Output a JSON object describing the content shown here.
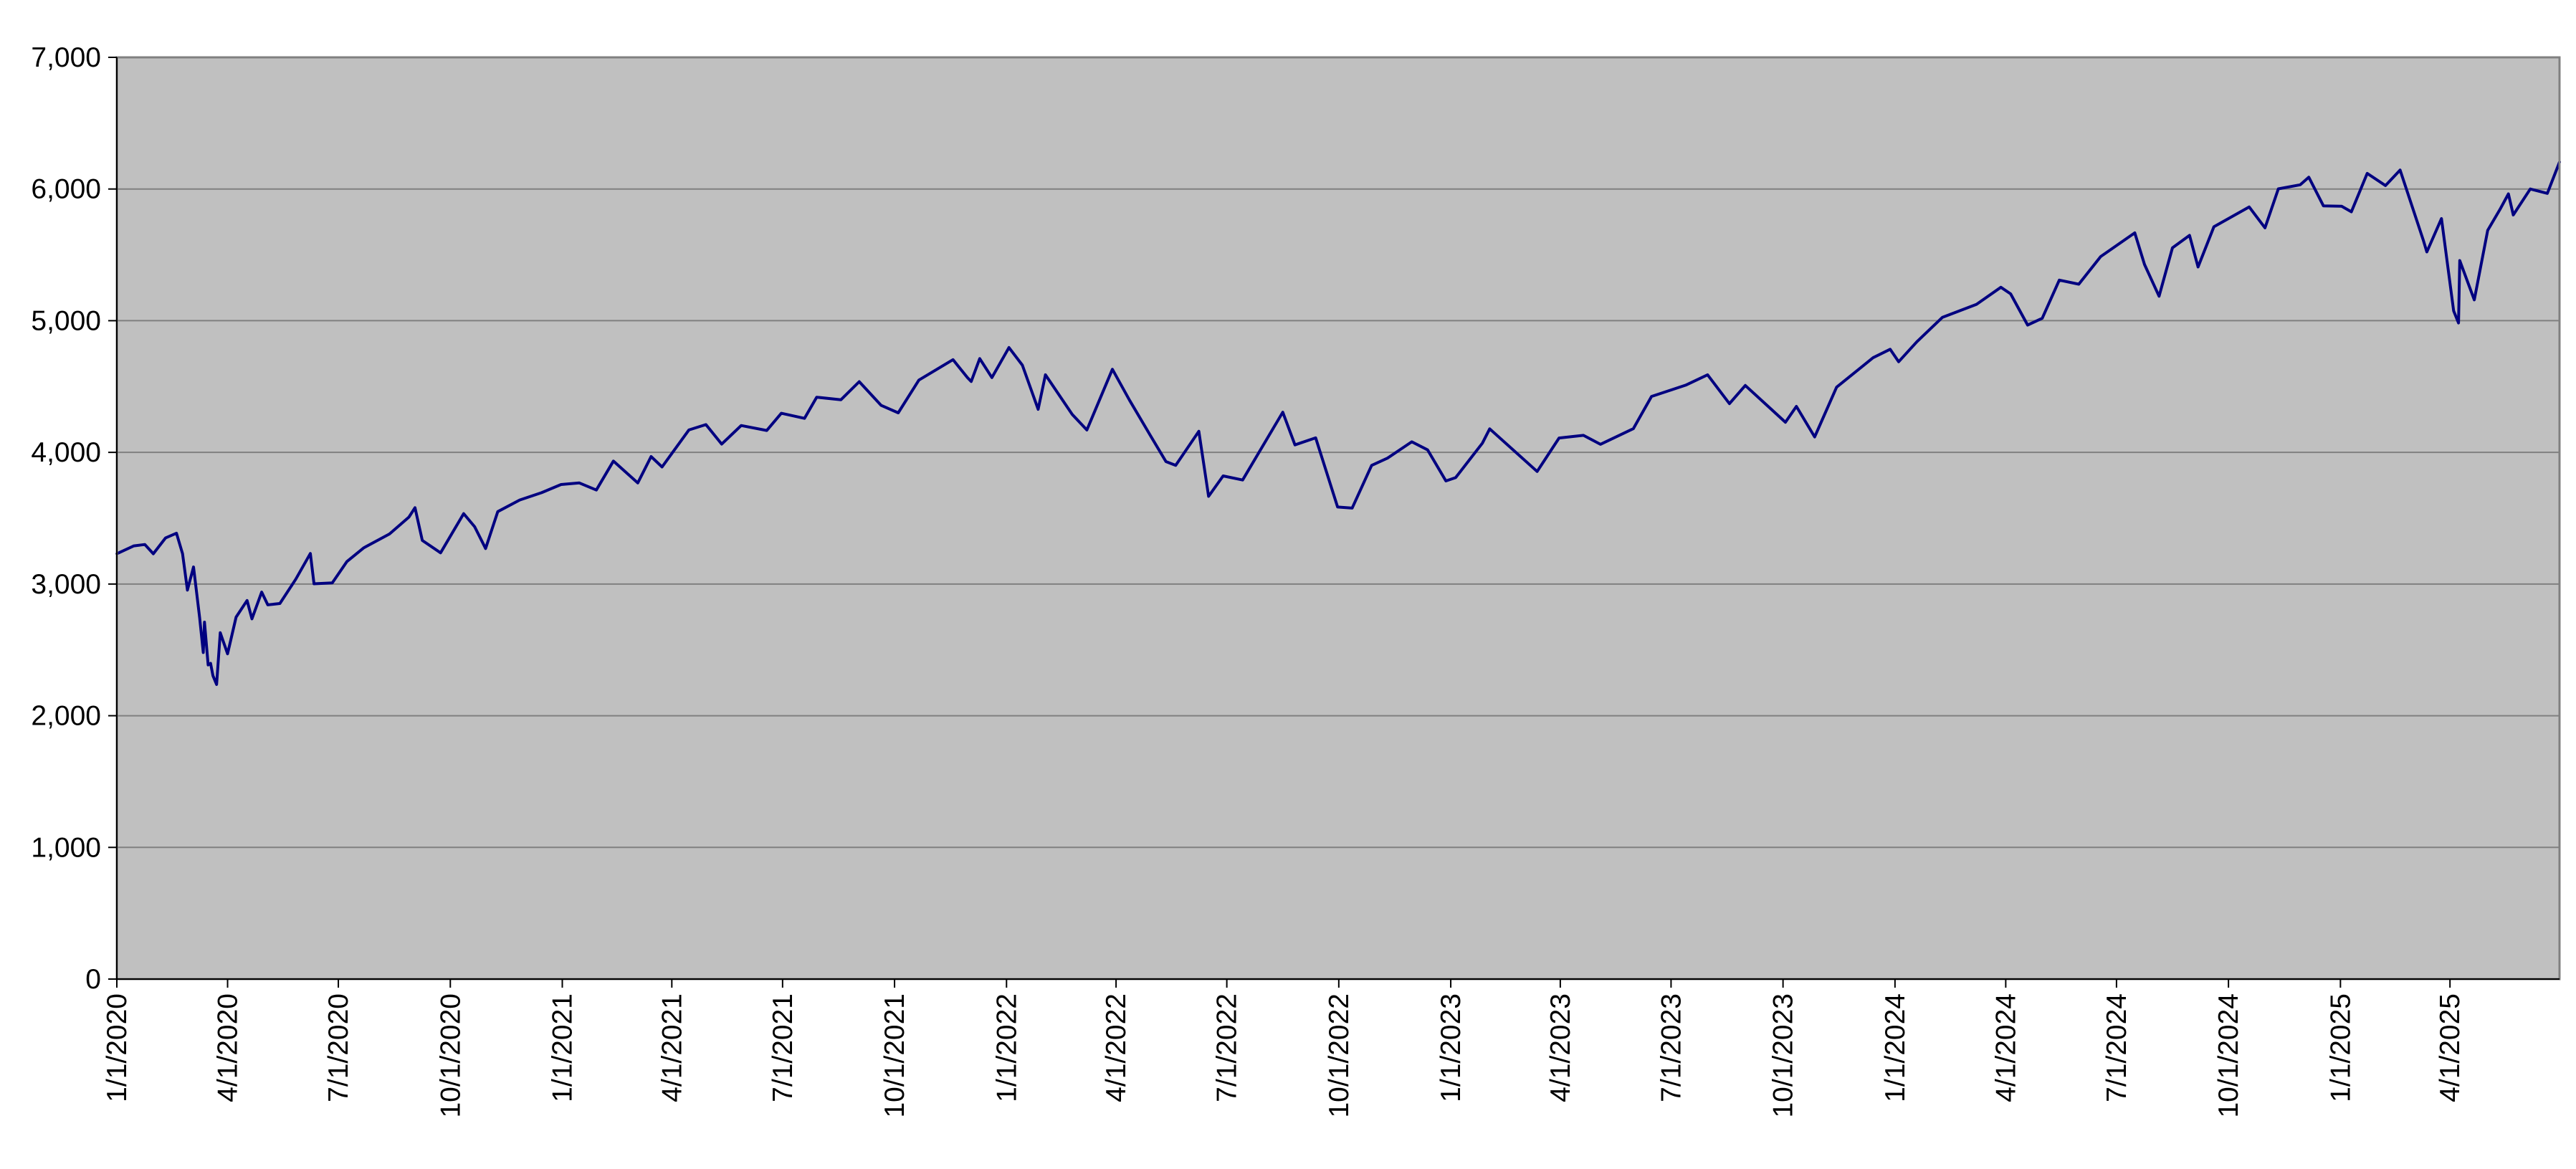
{
  "chart_data": {
    "type": "line",
    "title": "",
    "xlabel": "",
    "ylabel": "",
    "ylim": [
      0,
      7000
    ],
    "xlim": [
      "2020-01-01",
      "2025-06-30"
    ],
    "grid": true,
    "legend": "none",
    "y_ticks": [
      "0",
      "1,000",
      "2,000",
      "3,000",
      "4,000",
      "5,000",
      "6,000",
      "7,000"
    ],
    "y_tick_values": [
      0,
      1000,
      2000,
      3000,
      4000,
      5000,
      6000,
      7000
    ],
    "x_ticks": [
      "1/1/2020",
      "4/1/2020",
      "7/1/2020",
      "10/1/2020",
      "1/1/2021",
      "4/1/2021",
      "7/1/2021",
      "10/1/2021",
      "1/1/2022",
      "4/1/2022",
      "7/1/2022",
      "10/1/2022",
      "1/1/2023",
      "4/1/2023",
      "7/1/2023",
      "10/1/2023",
      "1/1/2024",
      "4/1/2024",
      "7/1/2024",
      "10/1/2024",
      "1/1/2025",
      "4/1/2025"
    ],
    "x_tick_dates": [
      "2020-01-01",
      "2020-04-01",
      "2020-07-01",
      "2020-10-01",
      "2021-01-01",
      "2021-04-01",
      "2021-07-01",
      "2021-10-01",
      "2022-01-01",
      "2022-04-01",
      "2022-07-01",
      "2022-10-01",
      "2023-01-01",
      "2023-04-01",
      "2023-07-01",
      "2023-10-01",
      "2024-01-01",
      "2024-04-01",
      "2024-07-01",
      "2024-10-01",
      "2025-01-01",
      "2025-04-01"
    ],
    "series": [
      {
        "color": "#000080",
        "points": [
          [
            "2020-01-01",
            3230
          ],
          [
            "2020-01-15",
            3290
          ],
          [
            "2020-01-24",
            3300
          ],
          [
            "2020-01-31",
            3230
          ],
          [
            "2020-02-10",
            3350
          ],
          [
            "2020-02-19",
            3386
          ],
          [
            "2020-02-24",
            3230
          ],
          [
            "2020-02-28",
            2954
          ],
          [
            "2020-03-04",
            3130
          ],
          [
            "2020-03-09",
            2746
          ],
          [
            "2020-03-12",
            2480
          ],
          [
            "2020-03-13",
            2711
          ],
          [
            "2020-03-16",
            2386
          ],
          [
            "2020-03-18",
            2398
          ],
          [
            "2020-03-20",
            2304
          ],
          [
            "2020-03-23",
            2237
          ],
          [
            "2020-03-26",
            2630
          ],
          [
            "2020-04-01",
            2470
          ],
          [
            "2020-04-08",
            2749
          ],
          [
            "2020-04-17",
            2875
          ],
          [
            "2020-04-21",
            2736
          ],
          [
            "2020-04-29",
            2939
          ],
          [
            "2020-05-04",
            2842
          ],
          [
            "2020-05-14",
            2852
          ],
          [
            "2020-05-27",
            3036
          ],
          [
            "2020-06-08",
            3232
          ],
          [
            "2020-06-11",
            3002
          ],
          [
            "2020-06-26",
            3009
          ],
          [
            "2020-07-08",
            3170
          ],
          [
            "2020-07-22",
            3276
          ],
          [
            "2020-08-12",
            3380
          ],
          [
            "2020-08-28",
            3508
          ],
          [
            "2020-09-02",
            3580
          ],
          [
            "2020-09-08",
            3331
          ],
          [
            "2020-09-23",
            3237
          ],
          [
            "2020-10-12",
            3535
          ],
          [
            "2020-10-21",
            3435
          ],
          [
            "2020-10-30",
            3270
          ],
          [
            "2020-11-09",
            3550
          ],
          [
            "2020-11-27",
            3638
          ],
          [
            "2020-12-15",
            3694
          ],
          [
            "2020-12-31",
            3756
          ],
          [
            "2021-01-15",
            3768
          ],
          [
            "2021-01-29",
            3714
          ],
          [
            "2021-02-12",
            3934
          ],
          [
            "2021-03-04",
            3768
          ],
          [
            "2021-03-15",
            3968
          ],
          [
            "2021-03-24",
            3889
          ],
          [
            "2021-04-15",
            4170
          ],
          [
            "2021-04-29",
            4211
          ],
          [
            "2021-05-12",
            4063
          ],
          [
            "2021-05-28",
            4204
          ],
          [
            "2021-06-18",
            4166
          ],
          [
            "2021-06-30",
            4297
          ],
          [
            "2021-07-19",
            4258
          ],
          [
            "2021-07-29",
            4419
          ],
          [
            "2021-08-18",
            4400
          ],
          [
            "2021-09-02",
            4537
          ],
          [
            "2021-09-20",
            4357
          ],
          [
            "2021-10-04",
            4300
          ],
          [
            "2021-10-21",
            4549
          ],
          [
            "2021-11-18",
            4704
          ],
          [
            "2021-11-30",
            4567
          ],
          [
            "2021-12-03",
            4538
          ],
          [
            "2021-12-10",
            4712
          ],
          [
            "2021-12-20",
            4568
          ],
          [
            "2022-01-03",
            4796
          ],
          [
            "2022-01-14",
            4662
          ],
          [
            "2022-01-27",
            4327
          ],
          [
            "2022-02-02",
            4589
          ],
          [
            "2022-02-24",
            4288
          ],
          [
            "2022-03-08",
            4170
          ],
          [
            "2022-03-29",
            4631
          ],
          [
            "2022-04-12",
            4397
          ],
          [
            "2022-04-29",
            4131
          ],
          [
            "2022-05-12",
            3930
          ],
          [
            "2022-05-20",
            3901
          ],
          [
            "2022-06-08",
            4160
          ],
          [
            "2022-06-16",
            3666
          ],
          [
            "2022-06-28",
            3821
          ],
          [
            "2022-07-14",
            3790
          ],
          [
            "2022-08-16",
            4305
          ],
          [
            "2022-08-26",
            4057
          ],
          [
            "2022-09-12",
            4110
          ],
          [
            "2022-09-30",
            3585
          ],
          [
            "2022-10-12",
            3577
          ],
          [
            "2022-10-28",
            3901
          ],
          [
            "2022-11-10",
            3956
          ],
          [
            "2022-11-30",
            4080
          ],
          [
            "2022-12-13",
            4019
          ],
          [
            "2022-12-28",
            3783
          ],
          [
            "2023-01-05",
            3808
          ],
          [
            "2023-01-27",
            4070
          ],
          [
            "2023-02-02",
            4179
          ],
          [
            "2023-03-13",
            3855
          ],
          [
            "2023-03-31",
            4109
          ],
          [
            "2023-04-20",
            4129
          ],
          [
            "2023-05-04",
            4061
          ],
          [
            "2023-05-31",
            4180
          ],
          [
            "2023-06-15",
            4425
          ],
          [
            "2023-07-13",
            4510
          ],
          [
            "2023-07-31",
            4589
          ],
          [
            "2023-08-18",
            4370
          ],
          [
            "2023-08-31",
            4508
          ],
          [
            "2023-09-21",
            4330
          ],
          [
            "2023-10-03",
            4229
          ],
          [
            "2023-10-12",
            4349
          ],
          [
            "2023-10-27",
            4117
          ],
          [
            "2023-11-14",
            4495
          ],
          [
            "2023-12-14",
            4719
          ],
          [
            "2023-12-28",
            4783
          ],
          [
            "2024-01-04",
            4688
          ],
          [
            "2024-01-19",
            4840
          ],
          [
            "2024-02-09",
            5026
          ],
          [
            "2024-03-08",
            5124
          ],
          [
            "2024-03-28",
            5254
          ],
          [
            "2024-04-05",
            5204
          ],
          [
            "2024-04-19",
            4967
          ],
          [
            "2024-05-01",
            5018
          ],
          [
            "2024-05-15",
            5308
          ],
          [
            "2024-05-31",
            5277
          ],
          [
            "2024-06-18",
            5487
          ],
          [
            "2024-07-16",
            5667
          ],
          [
            "2024-07-24",
            5427
          ],
          [
            "2024-08-05",
            5186
          ],
          [
            "2024-08-16",
            5554
          ],
          [
            "2024-08-30",
            5648
          ],
          [
            "2024-09-06",
            5408
          ],
          [
            "2024-09-19",
            5713
          ],
          [
            "2024-10-18",
            5864
          ],
          [
            "2024-10-31",
            5705
          ],
          [
            "2024-11-11",
            6001
          ],
          [
            "2024-11-29",
            6032
          ],
          [
            "2024-12-06",
            6090
          ],
          [
            "2024-12-18",
            5872
          ],
          [
            "2025-01-02",
            5869
          ],
          [
            "2025-01-10",
            5827
          ],
          [
            "2025-01-23",
            6119
          ],
          [
            "2025-02-07",
            6026
          ],
          [
            "2025-02-19",
            6144
          ],
          [
            "2025-03-10",
            5614
          ],
          [
            "2025-03-13",
            5522
          ],
          [
            "2025-03-25",
            5776
          ],
          [
            "2025-04-04",
            5074
          ],
          [
            "2025-04-08",
            4983
          ],
          [
            "2025-04-09",
            5457
          ],
          [
            "2025-04-21",
            5158
          ],
          [
            "2025-05-02",
            5686
          ],
          [
            "2025-05-12",
            5844
          ],
          [
            "2025-05-19",
            5963
          ],
          [
            "2025-05-23",
            5803
          ],
          [
            "2025-06-06",
            6000
          ],
          [
            "2025-06-20",
            5967
          ],
          [
            "2025-06-30",
            6205
          ]
        ]
      }
    ]
  }
}
